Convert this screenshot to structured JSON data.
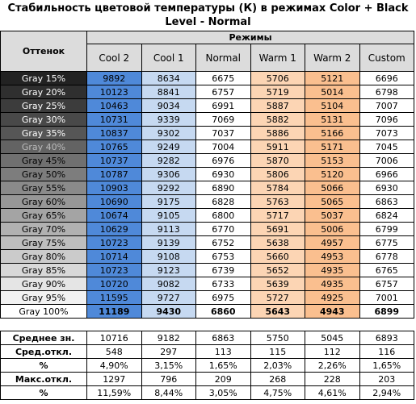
{
  "title": "Стабильность цветовой температуры (К) в режимах Color + Black Level - Normal",
  "table": {
    "corner": "Оттенок",
    "group": "Режимы",
    "columns": [
      "Cool 2",
      "Cool 1",
      "Normal",
      "Warm 1",
      "Warm 2",
      "Custom"
    ],
    "rows": [
      {
        "label": "Gray 15%",
        "values": [
          9892,
          8634,
          6675,
          5706,
          5121,
          6696
        ]
      },
      {
        "label": "Gray 20%",
        "values": [
          10123,
          8841,
          6757,
          5719,
          5014,
          6798
        ]
      },
      {
        "label": "Gray 25%",
        "values": [
          10463,
          9034,
          6991,
          5887,
          5104,
          7007
        ]
      },
      {
        "label": "Gray 30%",
        "values": [
          10731,
          9339,
          7069,
          5882,
          5131,
          7096
        ]
      },
      {
        "label": "Gray 35%",
        "values": [
          10837,
          9302,
          7037,
          5886,
          5166,
          7073
        ]
      },
      {
        "label": "Gray 40%",
        "values": [
          10765,
          9249,
          7004,
          5911,
          5171,
          7045
        ]
      },
      {
        "label": "Gray 45%",
        "values": [
          10737,
          9282,
          6976,
          5870,
          5153,
          7006
        ]
      },
      {
        "label": "Gray 50%",
        "values": [
          10787,
          9306,
          6930,
          5806,
          5120,
          6966
        ]
      },
      {
        "label": "Gray 55%",
        "values": [
          10903,
          9292,
          6890,
          5784,
          5066,
          6930
        ]
      },
      {
        "label": "Gray 60%",
        "values": [
          10690,
          9175,
          6828,
          5763,
          5065,
          6863
        ]
      },
      {
        "label": "Gray 65%",
        "values": [
          10674,
          9105,
          6800,
          5717,
          5037,
          6824
        ]
      },
      {
        "label": "Gray 70%",
        "values": [
          10629,
          9113,
          6770,
          5691,
          5006,
          6799
        ]
      },
      {
        "label": "Gray 75%",
        "values": [
          10723,
          9139,
          6752,
          5638,
          4957,
          6775
        ]
      },
      {
        "label": "Gray 80%",
        "values": [
          10714,
          9108,
          6753,
          5660,
          4953,
          6778
        ]
      },
      {
        "label": "Gray 85%",
        "values": [
          10723,
          9123,
          6739,
          5652,
          4935,
          6765
        ]
      },
      {
        "label": "Gray 90%",
        "values": [
          10720,
          9082,
          6733,
          5639,
          4935,
          6757
        ]
      },
      {
        "label": "Gray 95%",
        "values": [
          11595,
          9727,
          6975,
          5727,
          4925,
          7001
        ]
      },
      {
        "label": "Gray 100%",
        "values": [
          11189,
          9430,
          6860,
          5643,
          4943,
          6899
        ]
      }
    ],
    "summary": [
      {
        "label": "Среднее зн.",
        "values": [
          10716,
          9182,
          6863,
          5750,
          5045,
          6893
        ]
      },
      {
        "label": "Сред.откл.",
        "values": [
          548,
          297,
          113,
          115,
          112,
          116
        ]
      },
      {
        "label": "%",
        "values": [
          "4,90%",
          "3,15%",
          "1,65%",
          "2,03%",
          "2,26%",
          "1,65%"
        ]
      },
      {
        "label": "Макс.откл.",
        "values": [
          1297,
          796,
          209,
          268,
          228,
          203
        ]
      },
      {
        "label": "%",
        "values": [
          "11,59%",
          "8,44%",
          "3,05%",
          "4,75%",
          "4,61%",
          "2,94%"
        ]
      }
    ]
  }
}
